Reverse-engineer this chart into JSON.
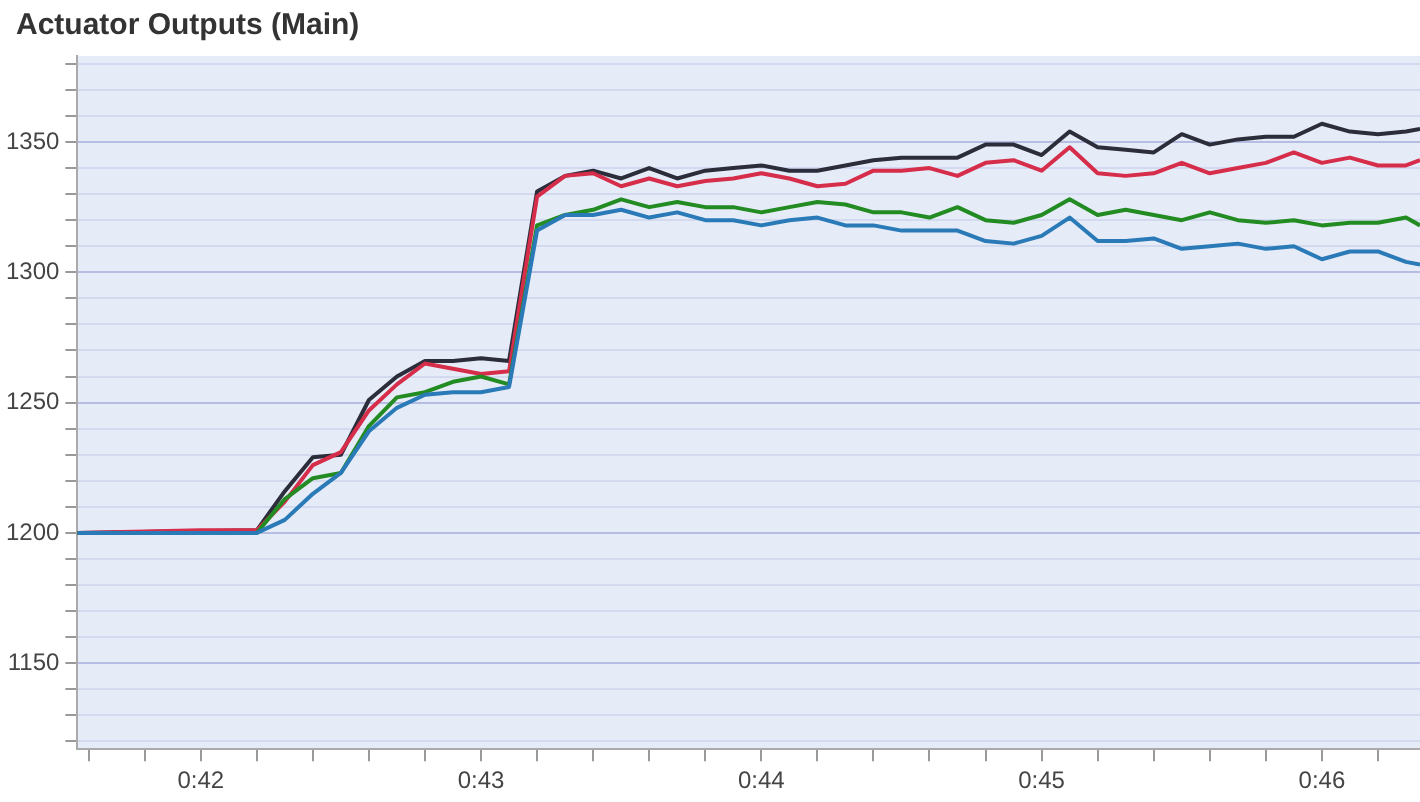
{
  "chart_data": {
    "type": "line",
    "title": "Actuator Outputs (Main)",
    "x": [
      41.56,
      42.0,
      42.2,
      42.3,
      42.4,
      42.5,
      42.6,
      42.7,
      42.8,
      42.9,
      43.0,
      43.1,
      43.2,
      43.3,
      43.4,
      43.5,
      43.6,
      43.7,
      43.8,
      43.9,
      44.0,
      44.1,
      44.2,
      44.3,
      44.4,
      44.5,
      44.6,
      44.7,
      44.8,
      44.9,
      45.0,
      45.1,
      45.2,
      45.3,
      45.4,
      45.5,
      45.6,
      45.7,
      45.8,
      45.9,
      46.0,
      46.1,
      46.2,
      46.3,
      46.35
    ],
    "series": [
      {
        "color": "#2a7ab8",
        "values": [
          1200,
          1200,
          1200,
          1205,
          1215,
          1223,
          1239,
          1248,
          1253,
          1254,
          1254,
          1256,
          1316,
          1322,
          1322,
          1324,
          1321,
          1323,
          1320,
          1320,
          1318,
          1320,
          1321,
          1318,
          1318,
          1316,
          1316,
          1316,
          1312,
          1311,
          1314,
          1321,
          1312,
          1312,
          1313,
          1309,
          1310,
          1311,
          1309,
          1310,
          1305,
          1308,
          1308,
          1304,
          1303
        ]
      },
      {
        "color": "#228b22",
        "values": [
          1200,
          null,
          1200,
          1213,
          1221,
          1223,
          1241,
          1252,
          1254,
          1258,
          1260,
          1257,
          1318,
          1322,
          1324,
          1328,
          1325,
          1327,
          1325,
          1325,
          1323,
          1325,
          1327,
          1326,
          1323,
          1323,
          1321,
          1325,
          1320,
          1319,
          1322,
          1328,
          1322,
          1324,
          1322,
          1320,
          1323,
          1320,
          1319,
          1320,
          1318,
          1319,
          1319,
          1321,
          1318
        ]
      },
      {
        "color": "#d62d4a",
        "values": [
          1200,
          1201,
          1201,
          1212,
          1226,
          1231,
          1247,
          1257,
          1265,
          1263,
          1261,
          1262,
          1329,
          1337,
          1338,
          1333,
          1336,
          1333,
          1335,
          1336,
          1338,
          1336,
          1333,
          1334,
          1339,
          1339,
          1340,
          1337,
          1342,
          1343,
          1339,
          1348,
          1338,
          1337,
          1338,
          1342,
          1338,
          1340,
          1342,
          1346,
          1342,
          1344,
          1341,
          1341,
          1343
        ]
      },
      {
        "color": "#2b2d3a",
        "values": [
          1200,
          null,
          1201,
          1216,
          1229,
          1230,
          1251,
          1260,
          1266,
          1266,
          1267,
          1266,
          1331,
          1337,
          1339,
          1336,
          1340,
          1336,
          1339,
          1340,
          1341,
          1339,
          1339,
          1341,
          1343,
          1344,
          1344,
          1344,
          1349,
          1349,
          1345,
          1354,
          1348,
          1347,
          1346,
          1353,
          1349,
          1351,
          1352,
          1352,
          1357,
          1354,
          1353,
          1354,
          1355
        ]
      }
    ],
    "xlim": [
      41.56,
      46.35
    ],
    "xticks": [
      {
        "value": 41.6,
        "label": null
      },
      {
        "value": 41.8,
        "label": null
      },
      {
        "value": 42,
        "label": "0:42"
      },
      {
        "value": 42.2,
        "label": null
      },
      {
        "value": 42.4,
        "label": null
      },
      {
        "value": 42.6,
        "label": null
      },
      {
        "value": 42.8,
        "label": null
      },
      {
        "value": 43,
        "label": "0:43"
      },
      {
        "value": 43.2,
        "label": null
      },
      {
        "value": 43.4,
        "label": null
      },
      {
        "value": 43.6,
        "label": null
      },
      {
        "value": 43.8,
        "label": null
      },
      {
        "value": 44,
        "label": "0:44"
      },
      {
        "value": 44.2,
        "label": null
      },
      {
        "value": 44.4,
        "label": null
      },
      {
        "value": 44.6,
        "label": null
      },
      {
        "value": 44.8,
        "label": null
      },
      {
        "value": 45,
        "label": "0:45"
      },
      {
        "value": 45.2,
        "label": null
      },
      {
        "value": 45.4,
        "label": null
      },
      {
        "value": 45.6,
        "label": null
      },
      {
        "value": 45.8,
        "label": null
      },
      {
        "value": 46,
        "label": "0:46"
      },
      {
        "value": 46.2,
        "label": null
      }
    ],
    "ylim": [
      1117,
      1383
    ],
    "yticks": [
      {
        "value": 1120,
        "label": null
      },
      {
        "value": 1130,
        "label": null
      },
      {
        "value": 1140,
        "label": null
      },
      1150,
      {
        "value": 1160,
        "label": null
      },
      {
        "value": 1170,
        "label": null
      },
      {
        "value": 1180,
        "label": null
      },
      {
        "value": 1190,
        "label": null
      },
      1200,
      {
        "value": 1210,
        "label": null
      },
      {
        "value": 1220,
        "label": null
      },
      {
        "value": 1230,
        "label": null
      },
      {
        "value": 1240,
        "label": null
      },
      1250,
      {
        "value": 1260,
        "label": null
      },
      {
        "value": 1270,
        "label": null
      },
      {
        "value": 1280,
        "label": null
      },
      {
        "value": 1290,
        "label": null
      },
      1300,
      {
        "value": 1310,
        "label": null
      },
      {
        "value": 1320,
        "label": null
      },
      {
        "value": 1330,
        "label": null
      },
      {
        "value": 1340,
        "label": null
      },
      1350,
      {
        "value": 1360,
        "label": null
      },
      {
        "value": 1370,
        "label": null
      },
      {
        "value": 1380,
        "label": null
      }
    ],
    "grid": "y",
    "legend": false,
    "marker": "none",
    "line_style": "solid"
  }
}
